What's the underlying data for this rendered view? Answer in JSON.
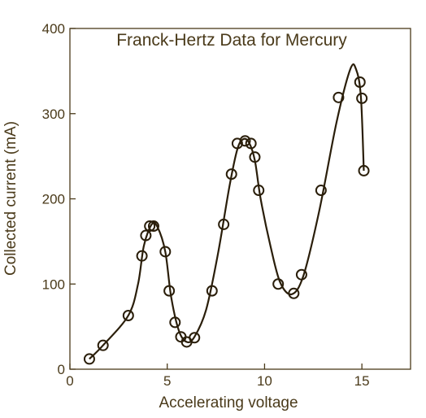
{
  "chart_data": {
    "type": "scatter",
    "title": "Franck-Hertz Data for Mercury",
    "xlabel": "Accelerating voltage",
    "ylabel": "Collected current (mA)",
    "xlim": [
      0,
      17.5
    ],
    "ylim": [
      0,
      400
    ],
    "xticks": [
      0,
      5,
      10,
      15
    ],
    "yticks": [
      0,
      100,
      200,
      300,
      400
    ],
    "grid": false,
    "points": [
      [
        1.0,
        12
      ],
      [
        1.7,
        28
      ],
      [
        3.0,
        63
      ],
      [
        3.7,
        133
      ],
      [
        3.9,
        157
      ],
      [
        4.1,
        168
      ],
      [
        4.3,
        168
      ],
      [
        4.9,
        138
      ],
      [
        5.1,
        92
      ],
      [
        5.4,
        55
      ],
      [
        5.7,
        38
      ],
      [
        6.0,
        32
      ],
      [
        6.4,
        37
      ],
      [
        7.3,
        92
      ],
      [
        7.9,
        170
      ],
      [
        8.3,
        229
      ],
      [
        8.6,
        265
      ],
      [
        9.0,
        268
      ],
      [
        9.3,
        265
      ],
      [
        9.5,
        249
      ],
      [
        9.7,
        210
      ],
      [
        10.7,
        100
      ],
      [
        11.5,
        89
      ],
      [
        11.9,
        111
      ],
      [
        12.9,
        210
      ],
      [
        13.8,
        319
      ],
      [
        14.9,
        337
      ],
      [
        15.0,
        318
      ],
      [
        15.1,
        233
      ]
    ],
    "curve": [
      [
        1.0,
        12
      ],
      [
        1.7,
        28
      ],
      [
        3.0,
        63
      ],
      [
        3.5,
        100
      ],
      [
        3.8,
        145
      ],
      [
        4.2,
        170
      ],
      [
        4.5,
        167
      ],
      [
        4.9,
        138
      ],
      [
        5.2,
        85
      ],
      [
        5.6,
        45
      ],
      [
        6.0,
        32
      ],
      [
        6.4,
        38
      ],
      [
        7.0,
        70
      ],
      [
        7.6,
        135
      ],
      [
        8.2,
        215
      ],
      [
        8.6,
        258
      ],
      [
        8.9,
        270
      ],
      [
        9.2,
        266
      ],
      [
        9.5,
        245
      ],
      [
        9.8,
        200
      ],
      [
        10.3,
        145
      ],
      [
        10.8,
        102
      ],
      [
        11.4,
        88
      ],
      [
        12.0,
        110
      ],
      [
        12.8,
        185
      ],
      [
        13.7,
        290
      ],
      [
        14.4,
        352
      ],
      [
        14.7,
        352
      ],
      [
        14.95,
        320
      ],
      [
        15.1,
        233
      ]
    ]
  }
}
